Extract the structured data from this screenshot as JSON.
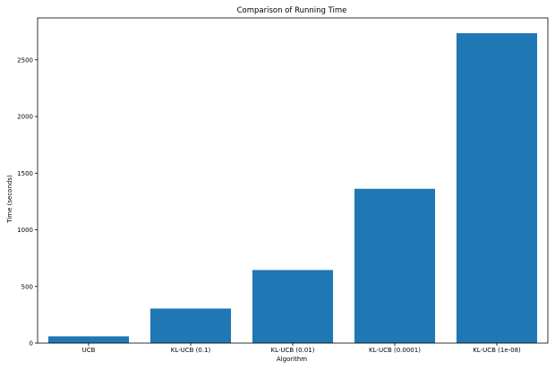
{
  "chart_data": {
    "type": "bar",
    "title": "Comparison of Running Time",
    "xlabel": "Algorithm",
    "ylabel": "Time (seconds)",
    "categories": [
      "UCB",
      "KL-UCB (0.1)",
      "KL-UCB (0.01)",
      "KL-UCB (0.0001)",
      "KL-UCB (1e-08)"
    ],
    "values": [
      60,
      305,
      645,
      1362,
      2735
    ],
    "ylim": [
      0,
      2870
    ],
    "yticks": [
      0,
      500,
      1000,
      1500,
      2000,
      2500
    ],
    "grid": false,
    "bar_color": "#1f77b4"
  }
}
